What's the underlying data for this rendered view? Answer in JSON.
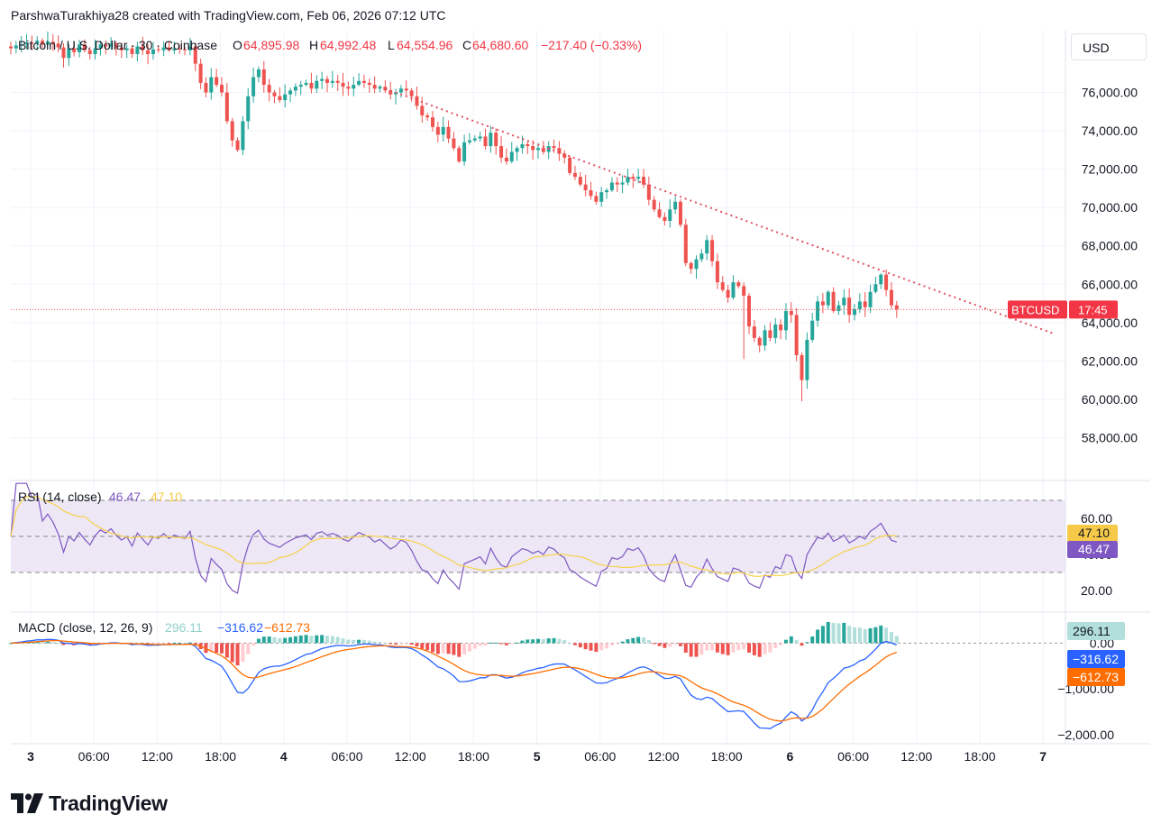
{
  "header": {
    "created_by": "ParshwaTurakhiya28 created with TradingView.com, Feb 06, 2026 07:12 UTC"
  },
  "legend": {
    "symbol": "Bitcoin / U.S. Dollar · 30 · Coinbase",
    "open_label": "O",
    "open": "64,895.98",
    "high_label": "H",
    "high": "64,992.48",
    "low_label": "L",
    "low": "64,554.96",
    "close_label": "C",
    "close": "64,680.60",
    "change": "−217.40 (−0.33%)"
  },
  "currency_button": "USD",
  "price_tag": {
    "symbol": "BTCUSD",
    "countdown": "17:45"
  },
  "branding": {
    "logo_text": "TradingView"
  },
  "colors": {
    "up": "#26a69a",
    "down": "#ef5350",
    "trendline": "#e05060",
    "rsi_line": "#7e57c2",
    "rsi_ma": "#f7d24a",
    "rsi_band": "#ede7f6",
    "macd_line": "#2962ff",
    "signal_line": "#ff6d00",
    "hist_up_strong": "#26a69a",
    "hist_up_weak": "#b2dfdb",
    "hist_down_strong": "#ef5350",
    "hist_down_weak": "#ffcdd2"
  },
  "chart_data": [
    {
      "type": "candlestick",
      "title": "Bitcoin / U.S. Dollar · 30 · Coinbase",
      "ylabel": "USD",
      "ylim": [
        56000,
        78000
      ],
      "yticks": [
        "76,000.00",
        "74,000.00",
        "72,000.00",
        "70,000.00",
        "68,000.00",
        "66,000.00",
        "64,000.00",
        "62,000.00",
        "60,000.00",
        "58,000.00"
      ],
      "ytick_values": [
        76000,
        74000,
        72000,
        70000,
        68000,
        66000,
        64000,
        62000,
        60000,
        58000
      ],
      "xticks": [
        {
          "label": "3",
          "bold": true,
          "t": 0
        },
        {
          "label": "06:00",
          "t": 12
        },
        {
          "label": "12:00",
          "t": 24
        },
        {
          "label": "18:00",
          "t": 36
        },
        {
          "label": "4",
          "bold": true,
          "t": 48
        },
        {
          "label": "06:00",
          "t": 60
        },
        {
          "label": "12:00",
          "t": 72
        },
        {
          "label": "18:00",
          "t": 84
        },
        {
          "label": "5",
          "bold": true,
          "t": 96
        },
        {
          "label": "06:00",
          "t": 108
        },
        {
          "label": "12:00",
          "t": 120
        },
        {
          "label": "18:00",
          "t": 132
        },
        {
          "label": "6",
          "bold": true,
          "t": 144
        },
        {
          "label": "06:00",
          "t": 156
        },
        {
          "label": "12:00",
          "t": 168
        },
        {
          "label": "18:00",
          "t": 180
        },
        {
          "label": "7",
          "bold": true,
          "t": 192
        }
      ],
      "close_series": [
        78300,
        78450,
        78500,
        78600,
        78550,
        78700,
        78500,
        78650,
        78550,
        78350,
        77800,
        78300,
        78100,
        78500,
        78200,
        78000,
        78300,
        78500,
        78400,
        78550,
        78350,
        78200,
        78300,
        78000,
        78400,
        78200,
        78000,
        78250,
        78200,
        78350,
        78200,
        78300,
        78250,
        78200,
        78400,
        77500,
        76500,
        76000,
        76800,
        76400,
        76000,
        74500,
        73500,
        73000,
        74500,
        75800,
        76800,
        77200,
        76400,
        76000,
        75800,
        75600,
        75900,
        76100,
        76300,
        76400,
        76500,
        76200,
        76600,
        76700,
        76500,
        76600,
        76500,
        76300,
        76200,
        76400,
        76600,
        76500,
        76400,
        76200,
        76300,
        76100,
        75900,
        76000,
        76200,
        76100,
        75800,
        75300,
        74800,
        74700,
        74200,
        73800,
        74200,
        73600,
        73100,
        72400,
        73400,
        73500,
        73600,
        73700,
        73200,
        73900,
        73200,
        72600,
        72400,
        72900,
        73100,
        73300,
        73200,
        73000,
        73100,
        72900,
        73200,
        73100,
        72800,
        72600,
        71800,
        71600,
        71200,
        70900,
        70600,
        70300,
        70800,
        70900,
        71300,
        71200,
        71300,
        71600,
        71500,
        71600,
        71200,
        70400,
        69900,
        69500,
        69300,
        69900,
        70300,
        69100,
        67100,
        66800,
        67300,
        67600,
        68300,
        67200,
        66100,
        65700,
        65300,
        66100,
        65900,
        65400,
        63800,
        63200,
        62800,
        63600,
        63200,
        63900,
        63600,
        64600,
        64400,
        62300,
        61000,
        63100,
        64100,
        65100,
        64900,
        65600,
        64600,
        64900,
        65300,
        64400,
        64700,
        65100,
        64800,
        65600,
        66000,
        66500,
        65700,
        64900,
        64700
      ],
      "trendline": [
        {
          "t": 71,
          "price": 76200
        },
        {
          "t": 198,
          "price": 63400
        }
      ],
      "last_price": 64680.6
    },
    {
      "type": "line",
      "title": "RSI (14, close)",
      "legend_values": [
        "46.47",
        "47.10"
      ],
      "ylim": [
        10,
        75
      ],
      "yticks": [
        "60.00",
        "40.00",
        "20.00"
      ],
      "ytick_values": [
        60,
        40,
        20
      ],
      "bands": [
        70,
        50,
        30
      ],
      "series": [
        {
          "name": "RSI",
          "last": "46.47"
        },
        {
          "name": "RSI MA",
          "last": "47.10"
        }
      ]
    },
    {
      "type": "line",
      "title": "MACD (close, 12, 26, 9)",
      "legend_values": [
        "296.11",
        "−316.62",
        "−612.73"
      ],
      "ylim": [
        -2200,
        500
      ],
      "yticks": [
        "0.00",
        "−1,000.00",
        "−2,000.00"
      ],
      "ytick_values": [
        0,
        -1000,
        -2000
      ],
      "series": [
        {
          "name": "Histogram",
          "last": "296.11"
        },
        {
          "name": "MACD",
          "last": "−316.62"
        },
        {
          "name": "Signal",
          "last": "−612.73"
        }
      ]
    }
  ]
}
